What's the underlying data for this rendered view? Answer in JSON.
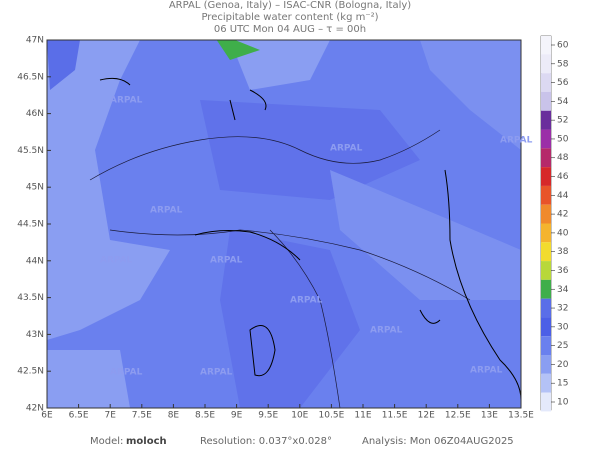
{
  "header": {
    "lines": [
      "ARPAL (Genoa, Italy)  –  ISAC-CNR (Bologna, Italy)",
      "Precipitable water content (kg m⁻²)",
      "06 UTC Mon 04 AUG  –  τ = 00h"
    ]
  },
  "map": {
    "lat_labels": [
      "47N",
      "46.5N",
      "46N",
      "45.5N",
      "45N",
      "44.5N",
      "44N",
      "43.5N",
      "43N",
      "42.5N",
      "42N"
    ],
    "lon_labels": [
      "6E",
      "6.5E",
      "7E",
      "7.5E",
      "8E",
      "8.5E",
      "9E",
      "9.5E",
      "10E",
      "10.5E",
      "11E",
      "11.5E",
      "12E",
      "12.5E",
      "13E",
      "13.5E"
    ],
    "watermark": "ARPAL"
  },
  "colorbar": {
    "levels": [
      {
        "label": 60,
        "color": "#f4f4fb"
      },
      {
        "label": 58,
        "color": "#ecebf8"
      },
      {
        "label": 56,
        "color": "#dcd9f2"
      },
      {
        "label": 54,
        "color": "#c9c3ea"
      },
      {
        "label": 52,
        "color": "#6a2e9c"
      },
      {
        "label": 50,
        "color": "#9b2fa8"
      },
      {
        "label": 48,
        "color": "#b52a6a"
      },
      {
        "label": 46,
        "color": "#d6282a"
      },
      {
        "label": 44,
        "color": "#e8542a"
      },
      {
        "label": 42,
        "color": "#f08a2c"
      },
      {
        "label": 40,
        "color": "#f4b42e"
      },
      {
        "label": 38,
        "color": "#f2dc2e"
      },
      {
        "label": 36,
        "color": "#b8d83a"
      },
      {
        "label": 34,
        "color": "#3fae4a"
      },
      {
        "label": 32,
        "color": "#5a6ee8"
      },
      {
        "label": 30,
        "color": "#4c5fe6"
      },
      {
        "label": 25,
        "color": "#6a80ee"
      },
      {
        "label": 20,
        "color": "#8a9ef2"
      },
      {
        "label": 15,
        "color": "#b4c2f6"
      },
      {
        "label": 10,
        "color": "#e4e9fb"
      }
    ]
  },
  "footer": {
    "model_label": "Model:",
    "model": "moloch",
    "resolution": "Resolution: 0.037°x0.028°",
    "analysis": "Analysis: Mon 06Z04AUG2025"
  }
}
